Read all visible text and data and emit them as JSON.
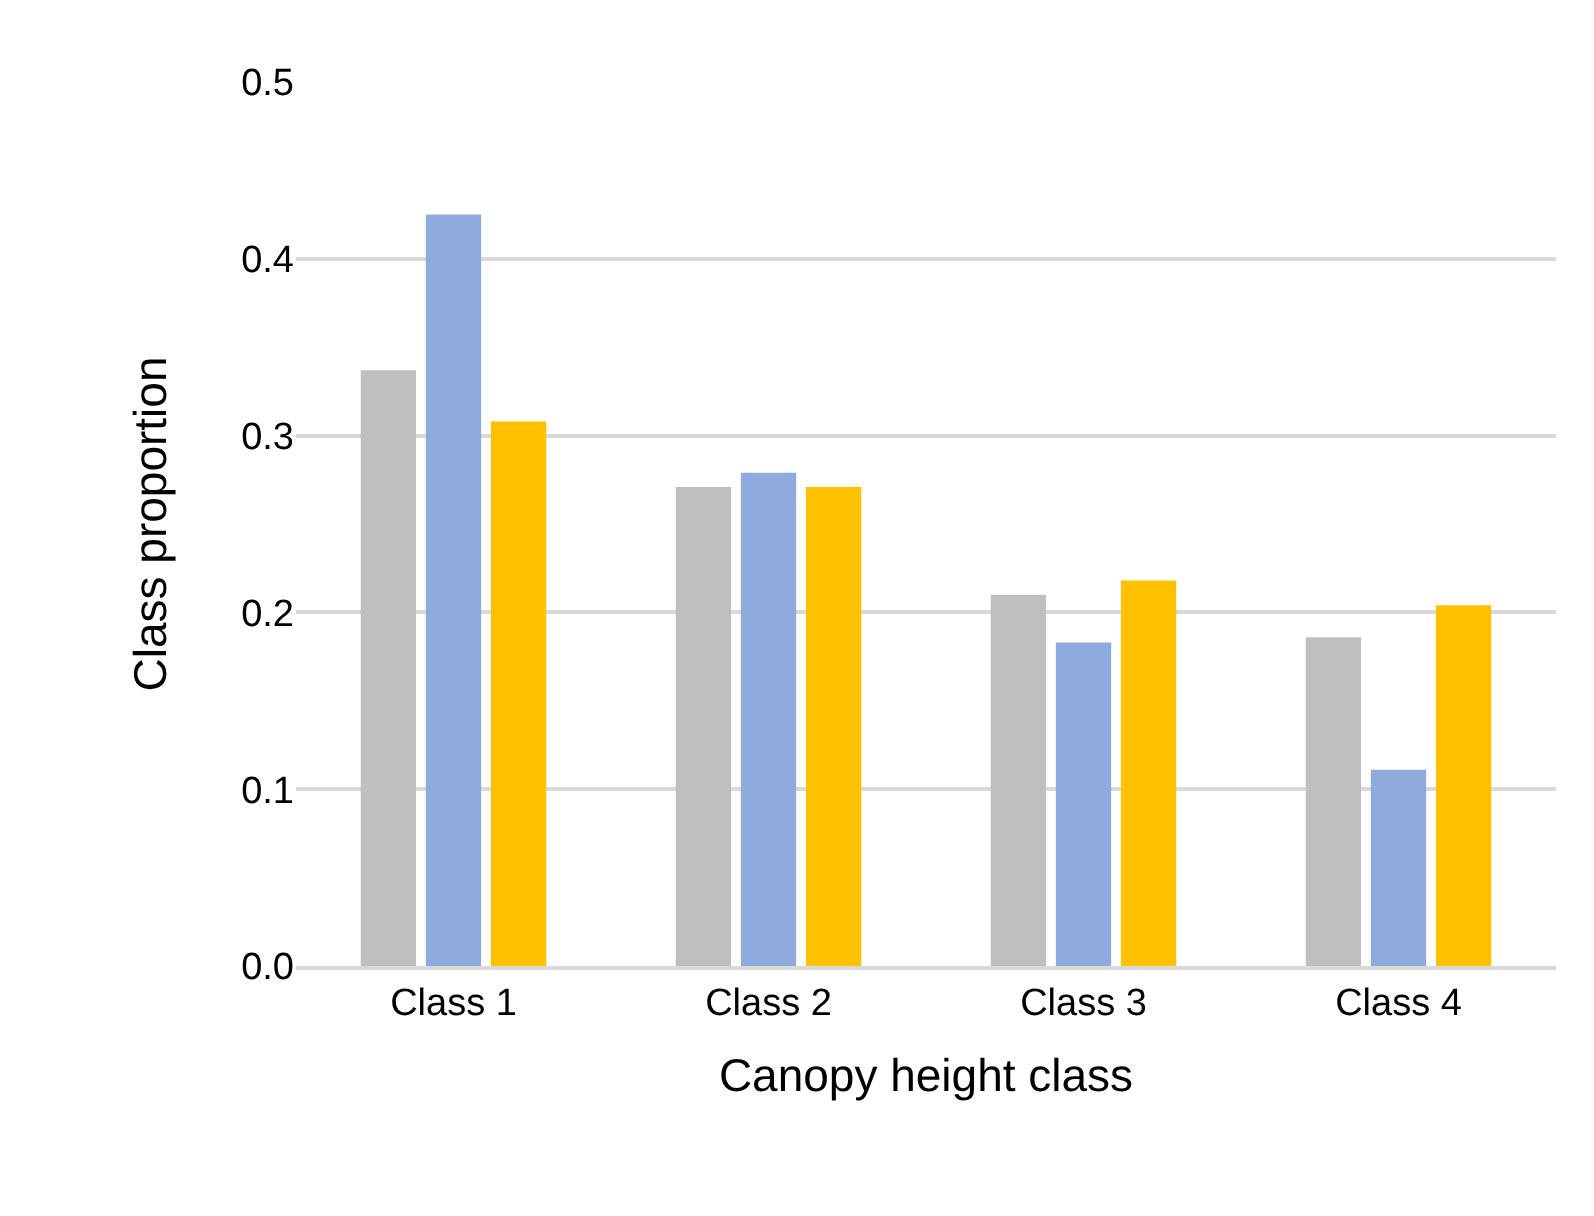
{
  "chart_data": {
    "type": "bar",
    "xlabel": "Canopy height class",
    "ylabel": "Class proportion",
    "categories": [
      "Class 1",
      "Class 2",
      "Class 3",
      "Class 4"
    ],
    "series": [
      {
        "color": "#bfbfbf",
        "values": [
          0.337,
          0.271,
          0.21,
          0.186
        ]
      },
      {
        "color": "#8faadc",
        "values": [
          0.425,
          0.279,
          0.183,
          0.111
        ]
      },
      {
        "color": "#ffc000",
        "values": [
          0.308,
          0.271,
          0.218,
          0.204
        ]
      }
    ],
    "ylim": [
      0,
      0.5
    ],
    "yticks": [
      {
        "value": 0,
        "label": "0.0"
      },
      {
        "value": 0.1,
        "label": "0.1"
      },
      {
        "value": 0.2,
        "label": "0.2"
      },
      {
        "value": 0.3,
        "label": "0.3"
      },
      {
        "value": 0.4,
        "label": "0.4"
      },
      {
        "value": 0.5,
        "label": "0.5"
      }
    ],
    "grid": "y",
    "legend": false
  }
}
